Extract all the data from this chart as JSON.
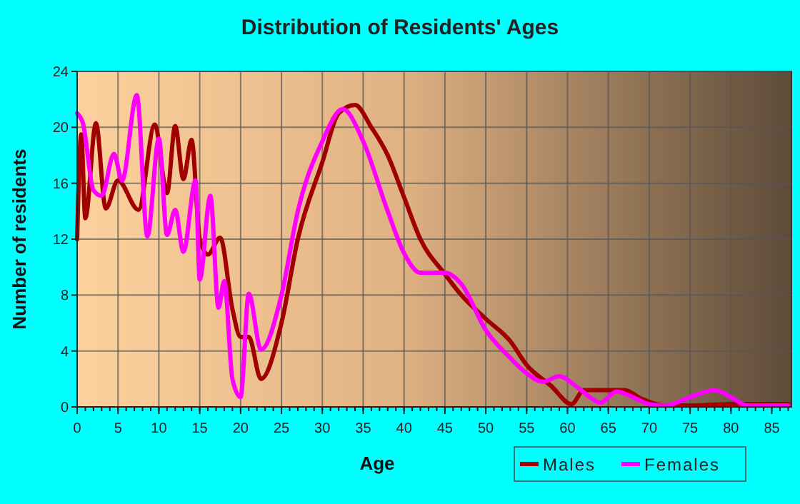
{
  "chart_data": {
    "type": "line",
    "title": "Distribution of Residents' Ages",
    "xlabel": "Age",
    "ylabel": "Number of residents",
    "xlim": [
      0,
      87.4
    ],
    "xticks": [
      0,
      5,
      10,
      15,
      20,
      25,
      30,
      35,
      40,
      45,
      50,
      55,
      60,
      65,
      70,
      75,
      80,
      85
    ],
    "ylim": [
      0,
      24
    ],
    "yticks": [
      0,
      4,
      8,
      12,
      16,
      20,
      24
    ],
    "grid": true,
    "legend": "bottom right",
    "series": [
      {
        "name": "Males",
        "color": "#a00000",
        "x": [
          0,
          0.5,
          1,
          2.3,
          3.5,
          5,
          7.5,
          9.5,
          11,
          12,
          13,
          14,
          15,
          16,
          17.5,
          19,
          20,
          21,
          22.5,
          25,
          27,
          30,
          32,
          34,
          36,
          38,
          40,
          42,
          45,
          47,
          50,
          53,
          55,
          58,
          60.5,
          62,
          65,
          67,
          69,
          72,
          75,
          80,
          87
        ],
        "values": [
          12,
          19.5,
          13.5,
          20.3,
          14.2,
          16.2,
          14.1,
          20.2,
          15.3,
          20.1,
          16.3,
          19.1,
          12,
          10.9,
          12.1,
          7,
          5,
          5,
          2,
          6,
          12,
          17.5,
          21,
          21.6,
          20,
          18,
          15,
          12,
          9.5,
          8,
          6.3,
          4.7,
          3,
          1.5,
          0.2,
          1.2,
          1.2,
          1.2,
          0.6,
          0.1,
          0.1,
          0.2,
          0.2
        ]
      },
      {
        "name": "Females",
        "color": "#ff00ff",
        "x": [
          0,
          0.7,
          2,
          3,
          4.5,
          5.5,
          7.3,
          8.6,
          10,
          11,
          12,
          13,
          14.5,
          15,
          16.3,
          17.3,
          18,
          19,
          20,
          21,
          22.5,
          25,
          27,
          30,
          32.5,
          35,
          38,
          40,
          42,
          45,
          47,
          50,
          53,
          55,
          57,
          59,
          61,
          63,
          64,
          66,
          68,
          70,
          72,
          75,
          78,
          80,
          82,
          87
        ],
        "values": [
          21,
          20.3,
          15.5,
          15.1,
          18.1,
          16.2,
          22.3,
          12.2,
          19.2,
          12.3,
          14.1,
          11.1,
          16.2,
          9.1,
          15.1,
          7.1,
          9,
          2,
          0.7,
          8.1,
          4.1,
          8,
          14,
          19,
          21.3,
          19,
          14,
          11,
          9.6,
          9.6,
          8.8,
          5.5,
          3.5,
          2.4,
          1.8,
          2.2,
          1.5,
          0.6,
          0.3,
          1.1,
          0.7,
          0.2,
          0.1,
          0.7,
          1.2,
          0.7,
          0.1,
          0.1
        ]
      }
    ]
  }
}
